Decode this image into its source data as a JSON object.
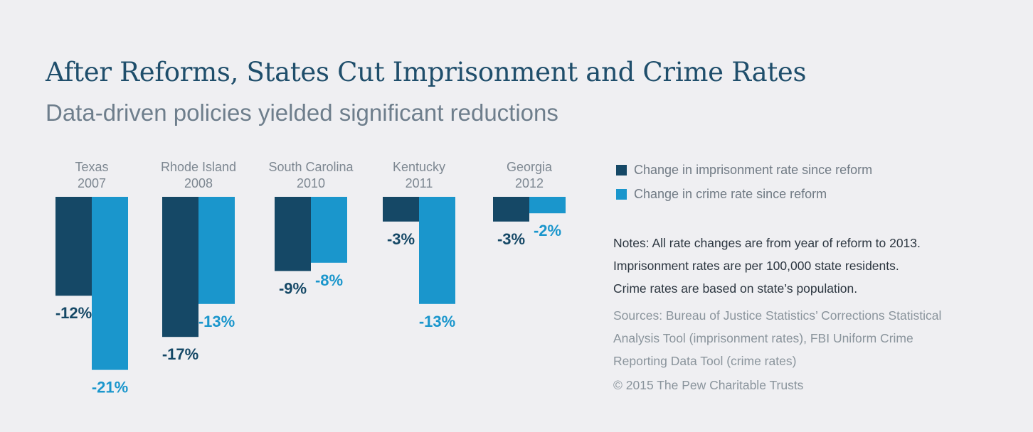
{
  "title": "After Reforms, States Cut Imprisonment and Crime Rates",
  "subtitle": "Data-driven policies yielded significant reductions",
  "colors": {
    "imprisonment": "#154866",
    "crime": "#1a96cc",
    "background": "#efeff2"
  },
  "legend": [
    {
      "label": "Change in imprisonment rate since reform",
      "color": "#154866"
    },
    {
      "label": "Change in crime rate since reform",
      "color": "#1a96cc"
    }
  ],
  "chart_data": {
    "type": "bar",
    "categories": [
      {
        "state": "Texas",
        "year": "2007"
      },
      {
        "state": "Rhode Island",
        "year": "2008"
      },
      {
        "state": "South Carolina",
        "year": "2010"
      },
      {
        "state": "Kentucky",
        "year": "2011"
      },
      {
        "state": "Georgia",
        "year": "2012"
      }
    ],
    "series": [
      {
        "name": "Change in imprisonment rate since reform",
        "values": [
          -12,
          -17,
          -9,
          -3,
          -3
        ],
        "labels": [
          "-12%",
          "-17%",
          "-9%",
          "-3%",
          "-3%"
        ]
      },
      {
        "name": "Change in crime rate since reform",
        "values": [
          -21,
          -13,
          -8,
          -13,
          -2
        ],
        "labels": [
          "-21%",
          "-13%",
          "-8%",
          "-13%",
          "-2%"
        ]
      }
    ],
    "ylim": [
      -21,
      0
    ]
  },
  "notes": [
    "Notes: All rate changes are from year of reform to 2013.",
    "Imprisonment rates are per 100,000 state residents.",
    "Crime rates are based on state’s population."
  ],
  "sources": [
    "Sources: Bureau of Justice Statistics’ Corrections Statistical",
    "Analysis Tool (imprisonment rates), FBI Uniform Crime",
    "Reporting Data Tool (crime rates)"
  ],
  "copyright": "© 2015 The Pew Charitable Trusts"
}
